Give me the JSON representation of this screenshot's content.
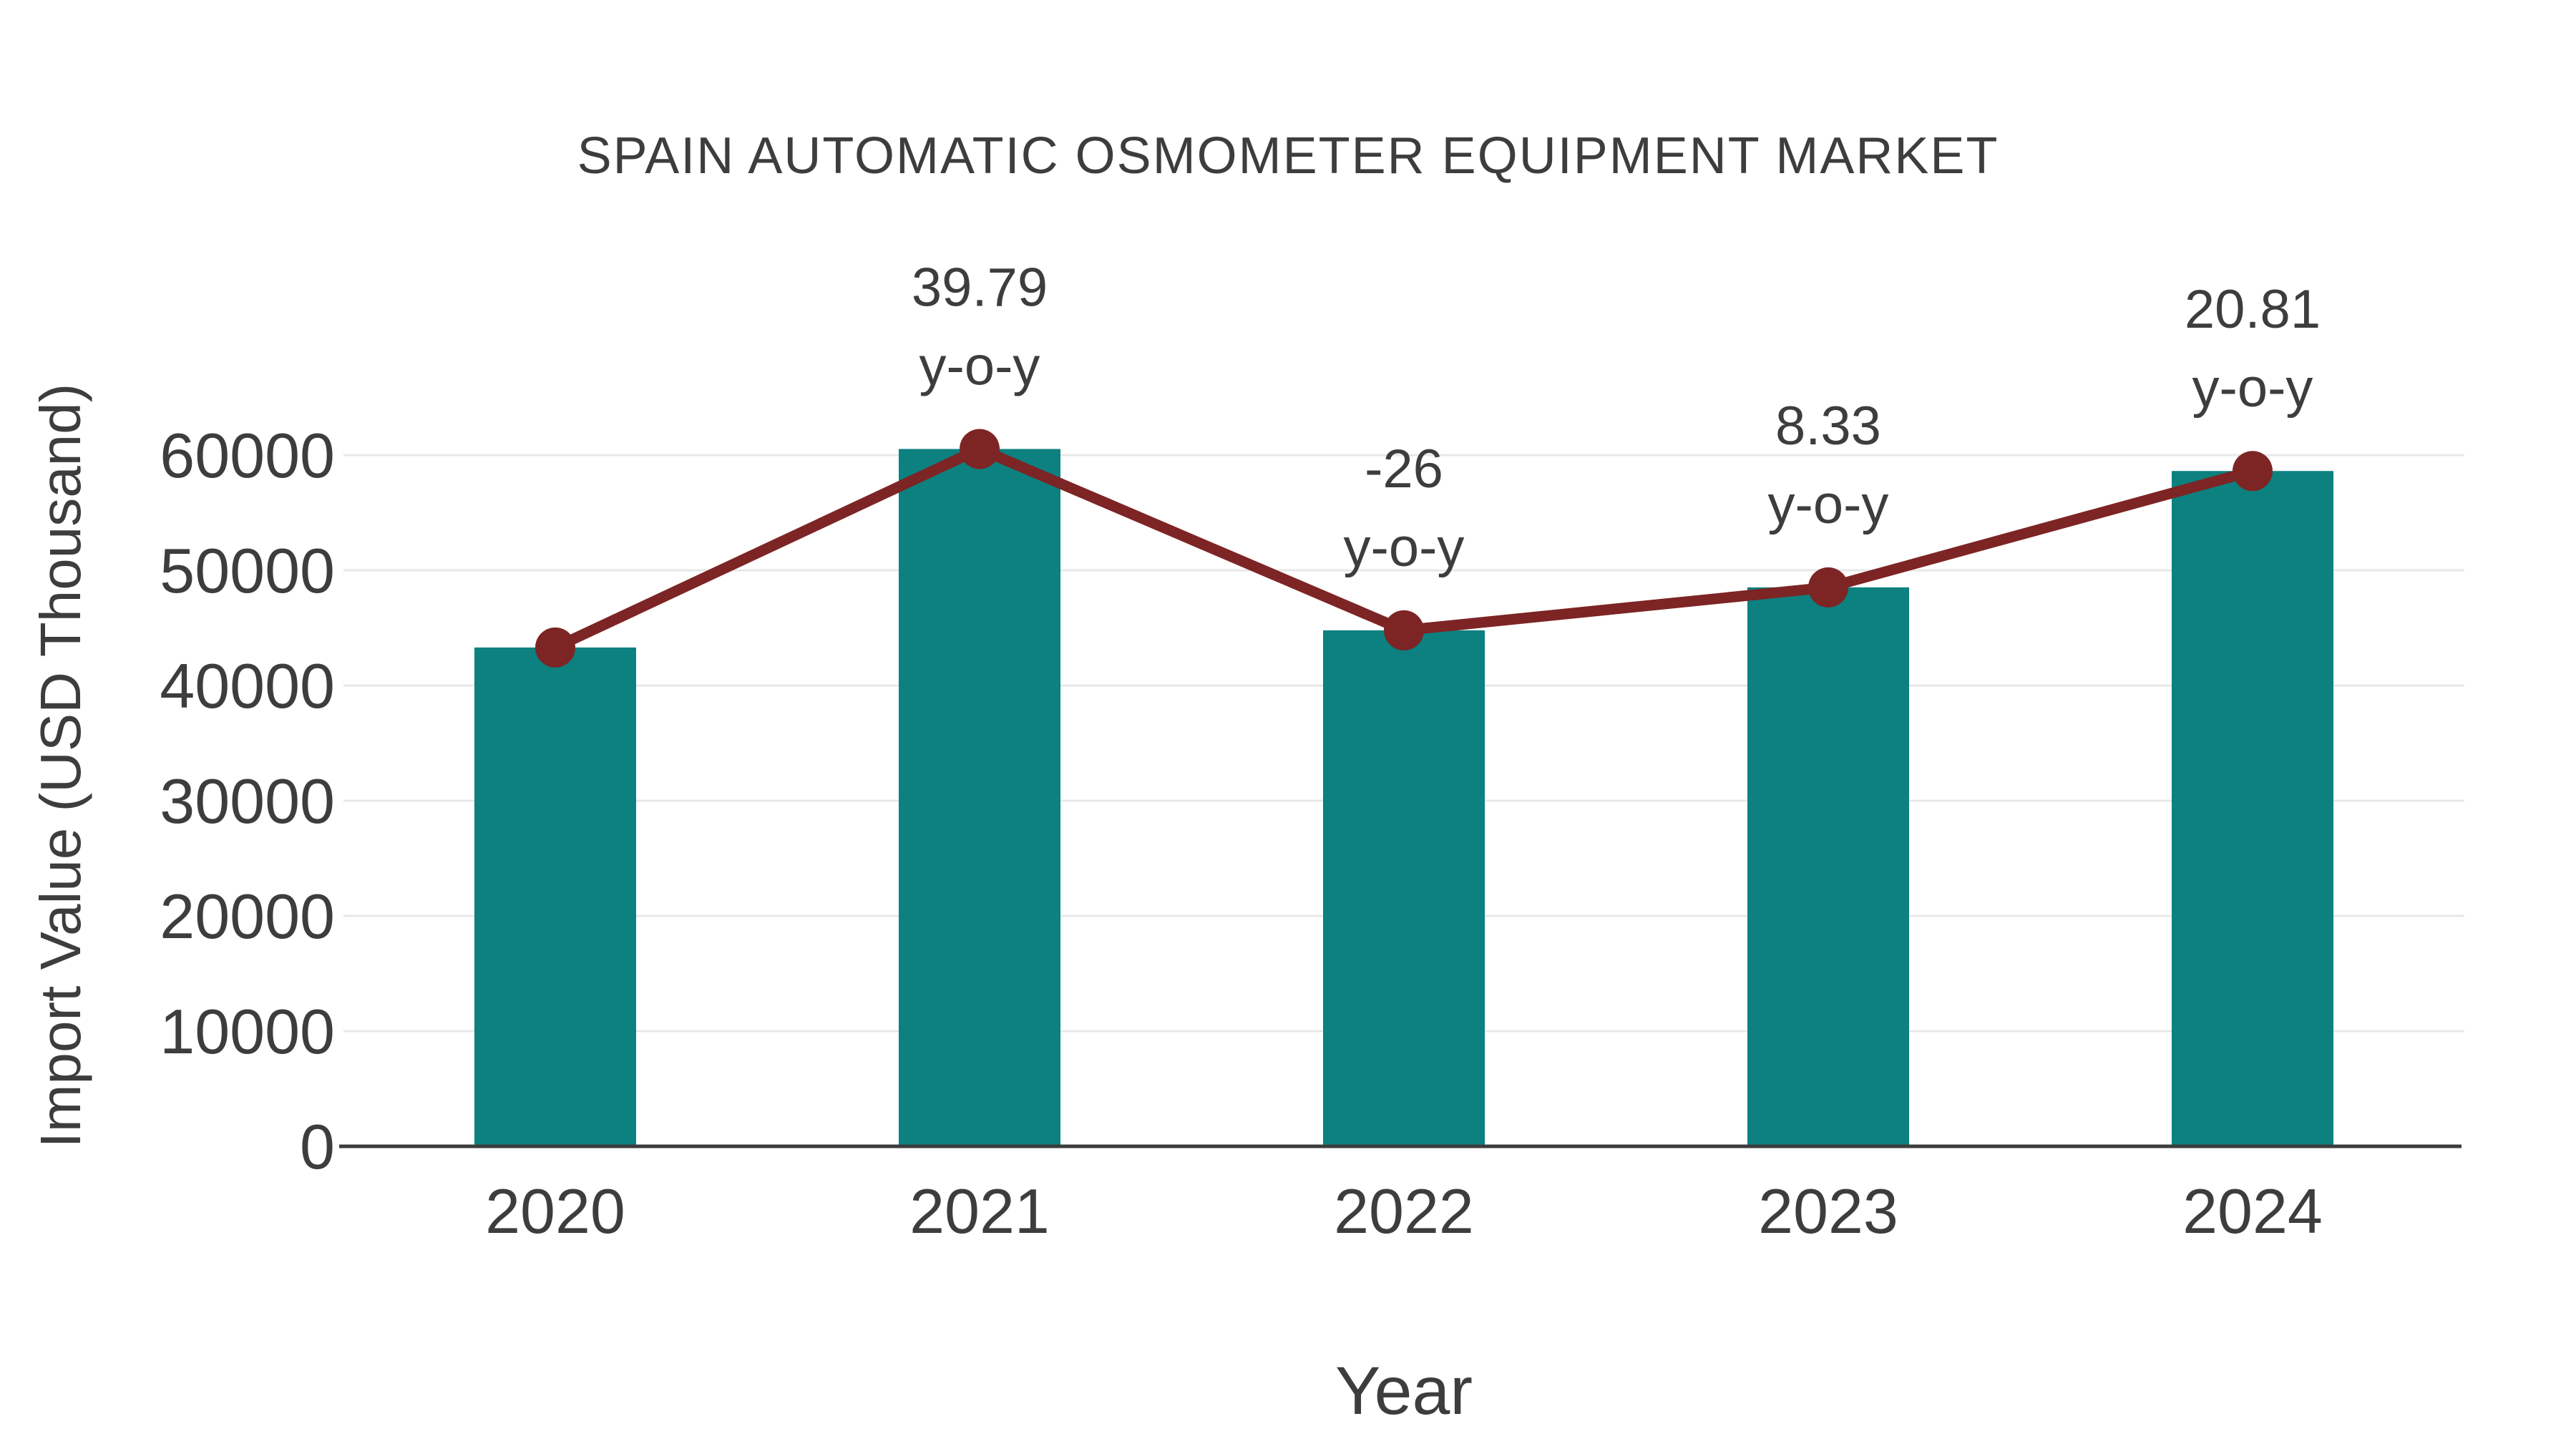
{
  "page": {
    "background": "#ffffff"
  },
  "chart_data": {
    "type": "bar",
    "title": "SPAIN AUTOMATIC OSMOMETER EQUIPMENT MARKET",
    "xlabel": "Year",
    "ylabel": "Import Value (USD Thousand)",
    "categories": [
      "2020",
      "2021",
      "2022",
      "2023",
      "2024"
    ],
    "series": [
      {
        "name": "Import Value (USD Thousand)",
        "type": "bar",
        "color": "#0d8080",
        "values": [
          43300,
          60530,
          44790,
          48520,
          58620
        ]
      },
      {
        "name": "y-o-y trend line",
        "type": "line",
        "color": "#7d2424",
        "values": [
          43300,
          60530,
          44790,
          48520,
          58620
        ]
      }
    ],
    "annotations": [
      {
        "category": "2021",
        "label": "39.79",
        "sub": "y-o-y"
      },
      {
        "category": "2022",
        "label": "-26",
        "sub": "y-o-y"
      },
      {
        "category": "2023",
        "label": "8.33",
        "sub": "y-o-y"
      },
      {
        "category": "2024",
        "label": "20.81",
        "sub": "y-o-y"
      }
    ],
    "yticks": [
      0,
      10000,
      20000,
      30000,
      40000,
      50000,
      60000
    ],
    "ylim": [
      0,
      65000
    ],
    "grid": true,
    "legend": false,
    "colors": {
      "bar": "#0d8080",
      "line": "#7d2424",
      "text": "#3d3d3d",
      "grid": "#e8e8e8",
      "axis": "#3c3c3c"
    }
  }
}
